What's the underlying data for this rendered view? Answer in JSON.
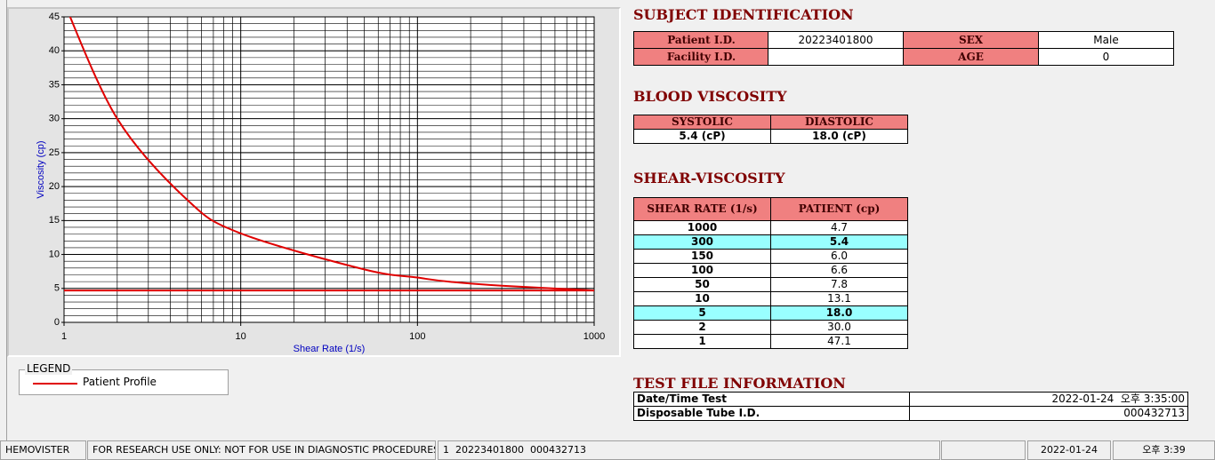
{
  "chart": {
    "type": "line",
    "x_label": "Shear Rate (1/s)",
    "y_label": "Viscosity (cp)",
    "log_x": true,
    "xlim": [
      1,
      1000
    ],
    "xticks": [
      1,
      10,
      100,
      1000
    ],
    "ylim": [
      0,
      45
    ],
    "yticks": [
      0,
      5,
      10,
      15,
      20,
      25,
      30,
      35,
      40,
      45
    ],
    "grid": true,
    "series": [
      {
        "name": "Patient Profile",
        "color": "#e00000",
        "x": [
          1,
          2,
          5,
          10,
          50,
          100,
          150,
          300,
          1000
        ],
        "values": [
          47.1,
          30.0,
          18.0,
          13.1,
          7.8,
          6.6,
          6.0,
          5.4,
          4.7
        ]
      },
      {
        "color": "#e00000",
        "x": [
          1,
          1000
        ],
        "values": [
          4.7,
          4.7
        ]
      }
    ]
  },
  "legend": {
    "title": "LEGEND"
  },
  "subject": {
    "title": "SUBJECT IDENTIFICATION",
    "rows": [
      [
        "Patient I.D.",
        "20223401800",
        "SEX",
        "Male"
      ],
      [
        "Facility I.D.",
        null,
        "AGE",
        "0"
      ]
    ]
  },
  "blood_viscosity": {
    "title": "BLOOD VISCOSITY",
    "headers": [
      "SYSTOLIC",
      "DIASTOLIC"
    ],
    "values": [
      "5.4 (cP)",
      "18.0 (cP)"
    ]
  },
  "shear_viscosity": {
    "title": "SHEAR-VISCOSITY",
    "headers": [
      "SHEAR RATE (1/s)",
      "PATIENT (cp)"
    ],
    "rows": [
      [
        "1000",
        "4.7"
      ],
      [
        "300",
        "5.4"
      ],
      [
        "150",
        "6.0"
      ],
      [
        "100",
        "6.6"
      ],
      [
        "50",
        "7.8"
      ],
      [
        "10",
        "13.1"
      ],
      [
        "5",
        "18.0"
      ],
      [
        "2",
        "30.0"
      ],
      [
        "1",
        "47.1"
      ]
    ],
    "highlighted_rows": [
      1,
      6
    ]
  },
  "test_file": {
    "title": "TEST FILE INFORMATION",
    "rows": [
      [
        "Date/Time Test",
        "2022-01-24  오후 3:35:00"
      ],
      [
        "Disposable Tube I.D.",
        "000432713"
      ]
    ]
  },
  "status_bar": [
    "HEMOVISTER",
    "FOR RESEARCH USE ONLY: NOT FOR USE IN DIAGNOSTIC PROCEDURES",
    "1  20223401800  000432713",
    null,
    "2022-01-24",
    "오후 3:39"
  ]
}
